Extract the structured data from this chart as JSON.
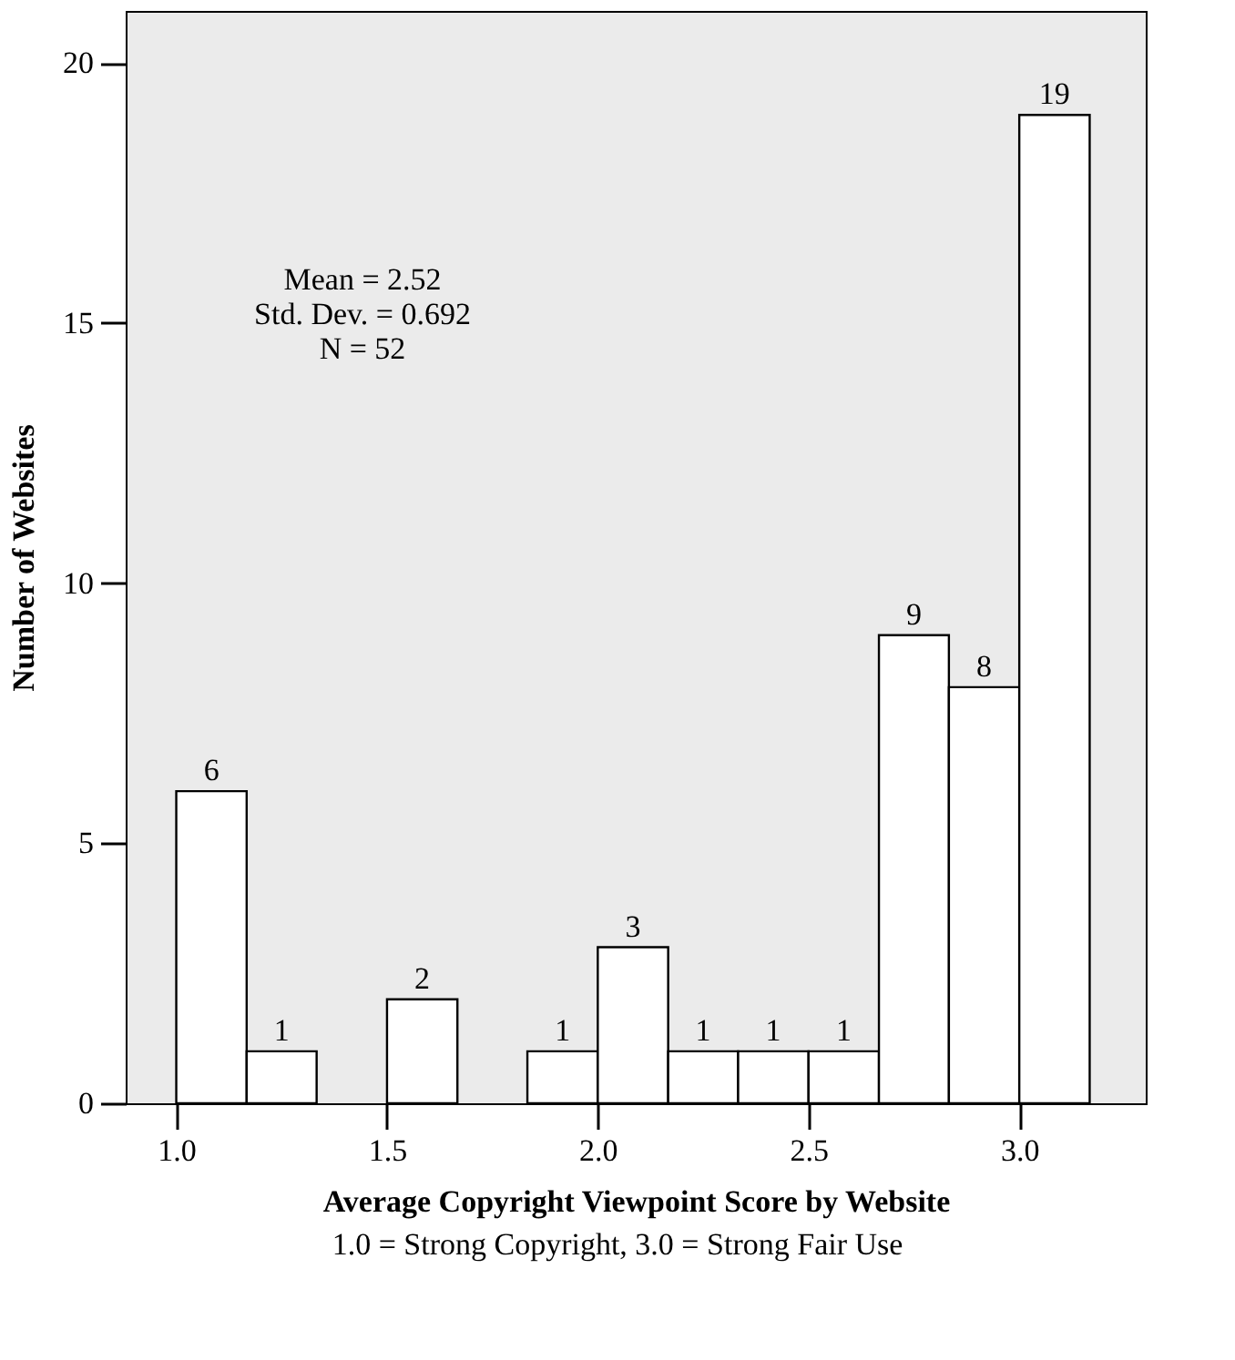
{
  "chart_data": {
    "type": "histogram",
    "xlabel": "Average Copyright Viewpoint Score by Website",
    "ylabel": "Number of Websites",
    "bins": [
      1.0,
      1.167,
      1.333,
      1.5,
      1.667,
      1.833,
      2.0,
      2.167,
      2.333,
      2.5,
      2.667,
      2.833,
      3.0,
      3.167
    ],
    "values": [
      6,
      1,
      0,
      2,
      0,
      1,
      3,
      1,
      1,
      1,
      9,
      8,
      19
    ],
    "color": "#ffffff",
    "value_labels": [
      "6",
      "1",
      null,
      "2",
      null,
      "1",
      "3",
      "1",
      "1",
      "1",
      "9",
      "8",
      "19"
    ],
    "xlim": [
      0.88,
      3.3
    ],
    "xticks": [
      {
        "value": 1,
        "label": "1.0"
      },
      {
        "value": 1.5,
        "label": "1.5"
      },
      {
        "value": 2,
        "label": "2.0"
      },
      {
        "value": 2.5,
        "label": "2.5"
      },
      {
        "value": 3,
        "label": "3.0"
      }
    ],
    "ylim": [
      0,
      21
    ],
    "yticks": [
      0,
      5,
      10,
      15,
      20
    ],
    "grid": false,
    "annotations": [
      "Mean = 2.52",
      "Std. Dev. = 0.692",
      "N = 52",
      "1.0 = Strong Copyright, 3.0 = Strong Fair Use"
    ]
  }
}
